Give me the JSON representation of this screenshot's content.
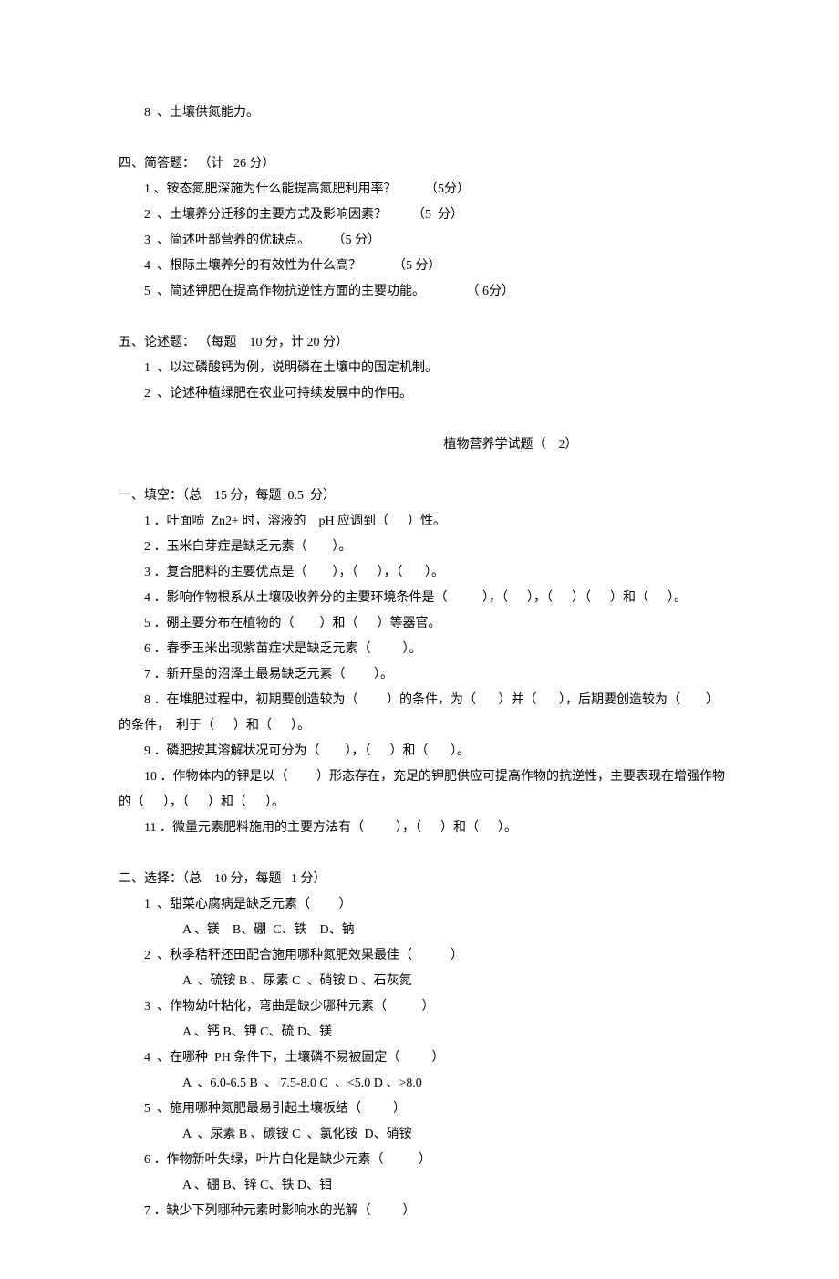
{
  "s3": {
    "item8": "8  、土壤供氮能力。"
  },
  "s4": {
    "title": "四、简答题： （计   26 分）",
    "q1": "1 、铵态氮肥深施为什么能提高氮肥利用率？         （5分）",
    "q2": "2  、土壤养分迁移的主要方式及影响因素？        （5  分）",
    "q3": "3  、简述叶部营养的优缺点。       （5 分）",
    "q4": "4  、根际土壤养分的有效性为什么高？          （5 分）",
    "q5": "5  、简述钾肥在提高作物抗逆性方面的主要功能。             （ 6分）"
  },
  "s5": {
    "title": "五、论述题： （每题    10 分，计 20 分）",
    "q1": "1  、以过磷酸钙为例，说明磷在土壤中的固定机制。",
    "q2": "2  、论述种植绿肥在农业可持续发展中的作用。"
  },
  "mainTitle": "植物营养学试题（    2）",
  "p1": {
    "title": "一、填空：（总    15 分，每题  0.5  分）",
    "q1": "1 ．叶面喷  Zn2+ 时，溶液的    pH 应调到（      ）性。",
    "q2": "2 ．玉米白芽症是缺乏元素（        ）。",
    "q3": "3 ．复合肥料的主要优点是（        ），（      ），（       ）。",
    "q4": "4 ．影响作物根系从土壤吸收养分的主要环境条件是（           ），（      ），（      ）（      ）和（      ）。",
    "q5": "5 ．硼主要分布在植物的（        ）和（      ）等器官。",
    "q6": "6 ．春季玉米出现紫苗症状是缺乏元素（          ）。",
    "q7": "7 ．新开垦的沼泽土最易缺乏元素（         ）。",
    "q8_1": "8 ．在堆肥过程中，初期要创造较为（         ）的条件，为（       ）并（       ），后期要创造较为（        ）",
    "q8_2": "的条件，  利于（      ）和（      ）。",
    "q9": "9 ．磷肥按其溶解状况可分为（        ），（      ）和（       ）。",
    "q10_1": "10 ．作物体内的钾是以（         ）形态存在，充足的钾肥供应可提高作物的抗逆性，主要表现在增强作物",
    "q10_2": "的（      ），（      ）和（      ）。",
    "q11": "11 ．微量元素肥料施用的主要方法有（          ），（      ）和（      ）。"
  },
  "p2": {
    "title": "二、选择：（总    10 分，每题   1 分）",
    "q1": "1  、甜菜心腐病是缺乏元素（         ）",
    "q1opt": "A 、镁    B、硼  C、铁    D、钠",
    "q2": "2  、秋季秸秆还田配合施用哪种氮肥效果最佳（            ）",
    "q2opt": "A  、硫铵 B 、尿素 C  、硝铵 D 、石灰氮",
    "q3": "3  、作物幼叶粘化，弯曲是缺少哪种元素（           ）",
    "q3opt": "A 、钙 B、钾 C、硫 D、镁",
    "q4": "4  、在哪种  PH 条件下，土壤磷不易被固定（          ）",
    "q4opt": "A  、6.0-6.5 B  、 7.5-8.0 C  、<5.0 D 、>8.0",
    "q5": "5  、施用哪种氮肥最易引起土壤板结（          ）",
    "q5opt": "A  、尿素 B 、碳铵 C  、氯化铵  D、硝铵",
    "q6": "6 ．作物新叶失绿，叶片白化是缺少元素（           ）",
    "q6opt": "A 、硼 B、锌 C、铁 D、钼",
    "q7": "7 ．缺少下列哪种元素时影响水的光解（          ）"
  }
}
